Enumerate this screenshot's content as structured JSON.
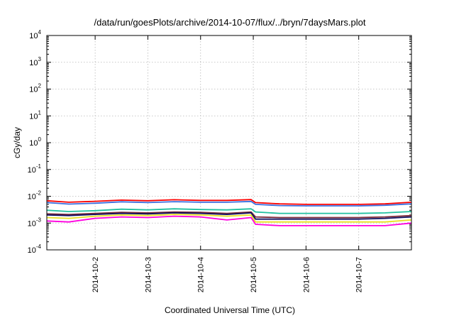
{
  "chart_data": {
    "type": "line",
    "title": "/data/run/goesPlots/archive/2014-10-07/flux/../bryn/7daysMars.plot",
    "xlabel": "Coordinated Universal Time (UTC)",
    "ylabel": "cGy/day",
    "yscale": "log",
    "ylim": [
      0.0001,
      10000
    ],
    "y_ticks": [
      {
        "base": "10",
        "exp": "-4",
        "value": 0.0001
      },
      {
        "base": "10",
        "exp": "-3",
        "value": 0.001
      },
      {
        "base": "10",
        "exp": "-2",
        "value": 0.01
      },
      {
        "base": "10",
        "exp": "-1",
        "value": 0.1
      },
      {
        "base": "10",
        "exp": "0",
        "value": 1
      },
      {
        "base": "10",
        "exp": "1",
        "value": 10
      },
      {
        "base": "10",
        "exp": "2",
        "value": 100
      },
      {
        "base": "10",
        "exp": "3",
        "value": 1000
      },
      {
        "base": "10",
        "exp": "4",
        "value": 10000
      }
    ],
    "xlim": [
      "2014-10-01T02:00",
      "2014-10-08T00:00"
    ],
    "x_ticks": [
      "2014-10-2",
      "2014-10-3",
      "2014-10-4",
      "2014-10-5",
      "2014-10-6",
      "2014-10-7"
    ],
    "grid": true,
    "x": [
      "2014-10-01T02:00",
      "2014-10-01T12:00",
      "2014-10-02T00:00",
      "2014-10-02T12:00",
      "2014-10-03T00:00",
      "2014-10-03T12:00",
      "2014-10-04T00:00",
      "2014-10-04T12:00",
      "2014-10-04T23:00",
      "2014-10-05T01:00",
      "2014-10-05T12:00",
      "2014-10-06T00:00",
      "2014-10-06T12:00",
      "2014-10-07T00:00",
      "2014-10-07T12:00",
      "2014-10-08T00:00"
    ],
    "series": [
      {
        "color": "#ff0000",
        "values": [
          0.0068,
          0.006,
          0.0065,
          0.0072,
          0.0068,
          0.0074,
          0.007,
          0.007,
          0.0075,
          0.0058,
          0.0052,
          0.005,
          0.005,
          0.005,
          0.0052,
          0.006
        ]
      },
      {
        "color": "#3a6fe0",
        "values": [
          0.0058,
          0.0051,
          0.0055,
          0.0062,
          0.0058,
          0.0063,
          0.006,
          0.006,
          0.0064,
          0.005,
          0.0045,
          0.0044,
          0.0044,
          0.0044,
          0.0046,
          0.0052
        ]
      },
      {
        "color": "#20c0a0",
        "values": [
          0.003,
          0.0027,
          0.0029,
          0.0033,
          0.0031,
          0.0034,
          0.0032,
          0.0031,
          0.0034,
          0.0026,
          0.0023,
          0.0023,
          0.0023,
          0.0023,
          0.0024,
          0.0027
        ]
      },
      {
        "color": "#7a2a3a",
        "values": [
          0.0022,
          0.0021,
          0.0023,
          0.0025,
          0.0024,
          0.0026,
          0.0025,
          0.0023,
          0.0026,
          0.0017,
          0.0016,
          0.0016,
          0.0016,
          0.0016,
          0.0017,
          0.0019
        ]
      },
      {
        "color": "#101060",
        "values": [
          0.002,
          0.0019,
          0.0021,
          0.0023,
          0.0022,
          0.0024,
          0.0023,
          0.0021,
          0.0024,
          0.0014,
          0.0014,
          0.0014,
          0.0014,
          0.0014,
          0.0015,
          0.0017
        ]
      },
      {
        "color": "#e8e020",
        "values": [
          0.0016,
          0.0015,
          0.0018,
          0.002,
          0.0019,
          0.0021,
          0.002,
          0.0018,
          0.002,
          0.0011,
          0.0011,
          0.0011,
          0.0011,
          0.0011,
          0.0011,
          0.0013
        ]
      },
      {
        "color": "#ff00e0",
        "values": [
          0.0012,
          0.0011,
          0.0015,
          0.0017,
          0.0016,
          0.0018,
          0.0017,
          0.0013,
          0.0016,
          0.0009,
          0.0008,
          0.0008,
          0.0008,
          0.0008,
          0.0008,
          0.001
        ]
      }
    ]
  }
}
